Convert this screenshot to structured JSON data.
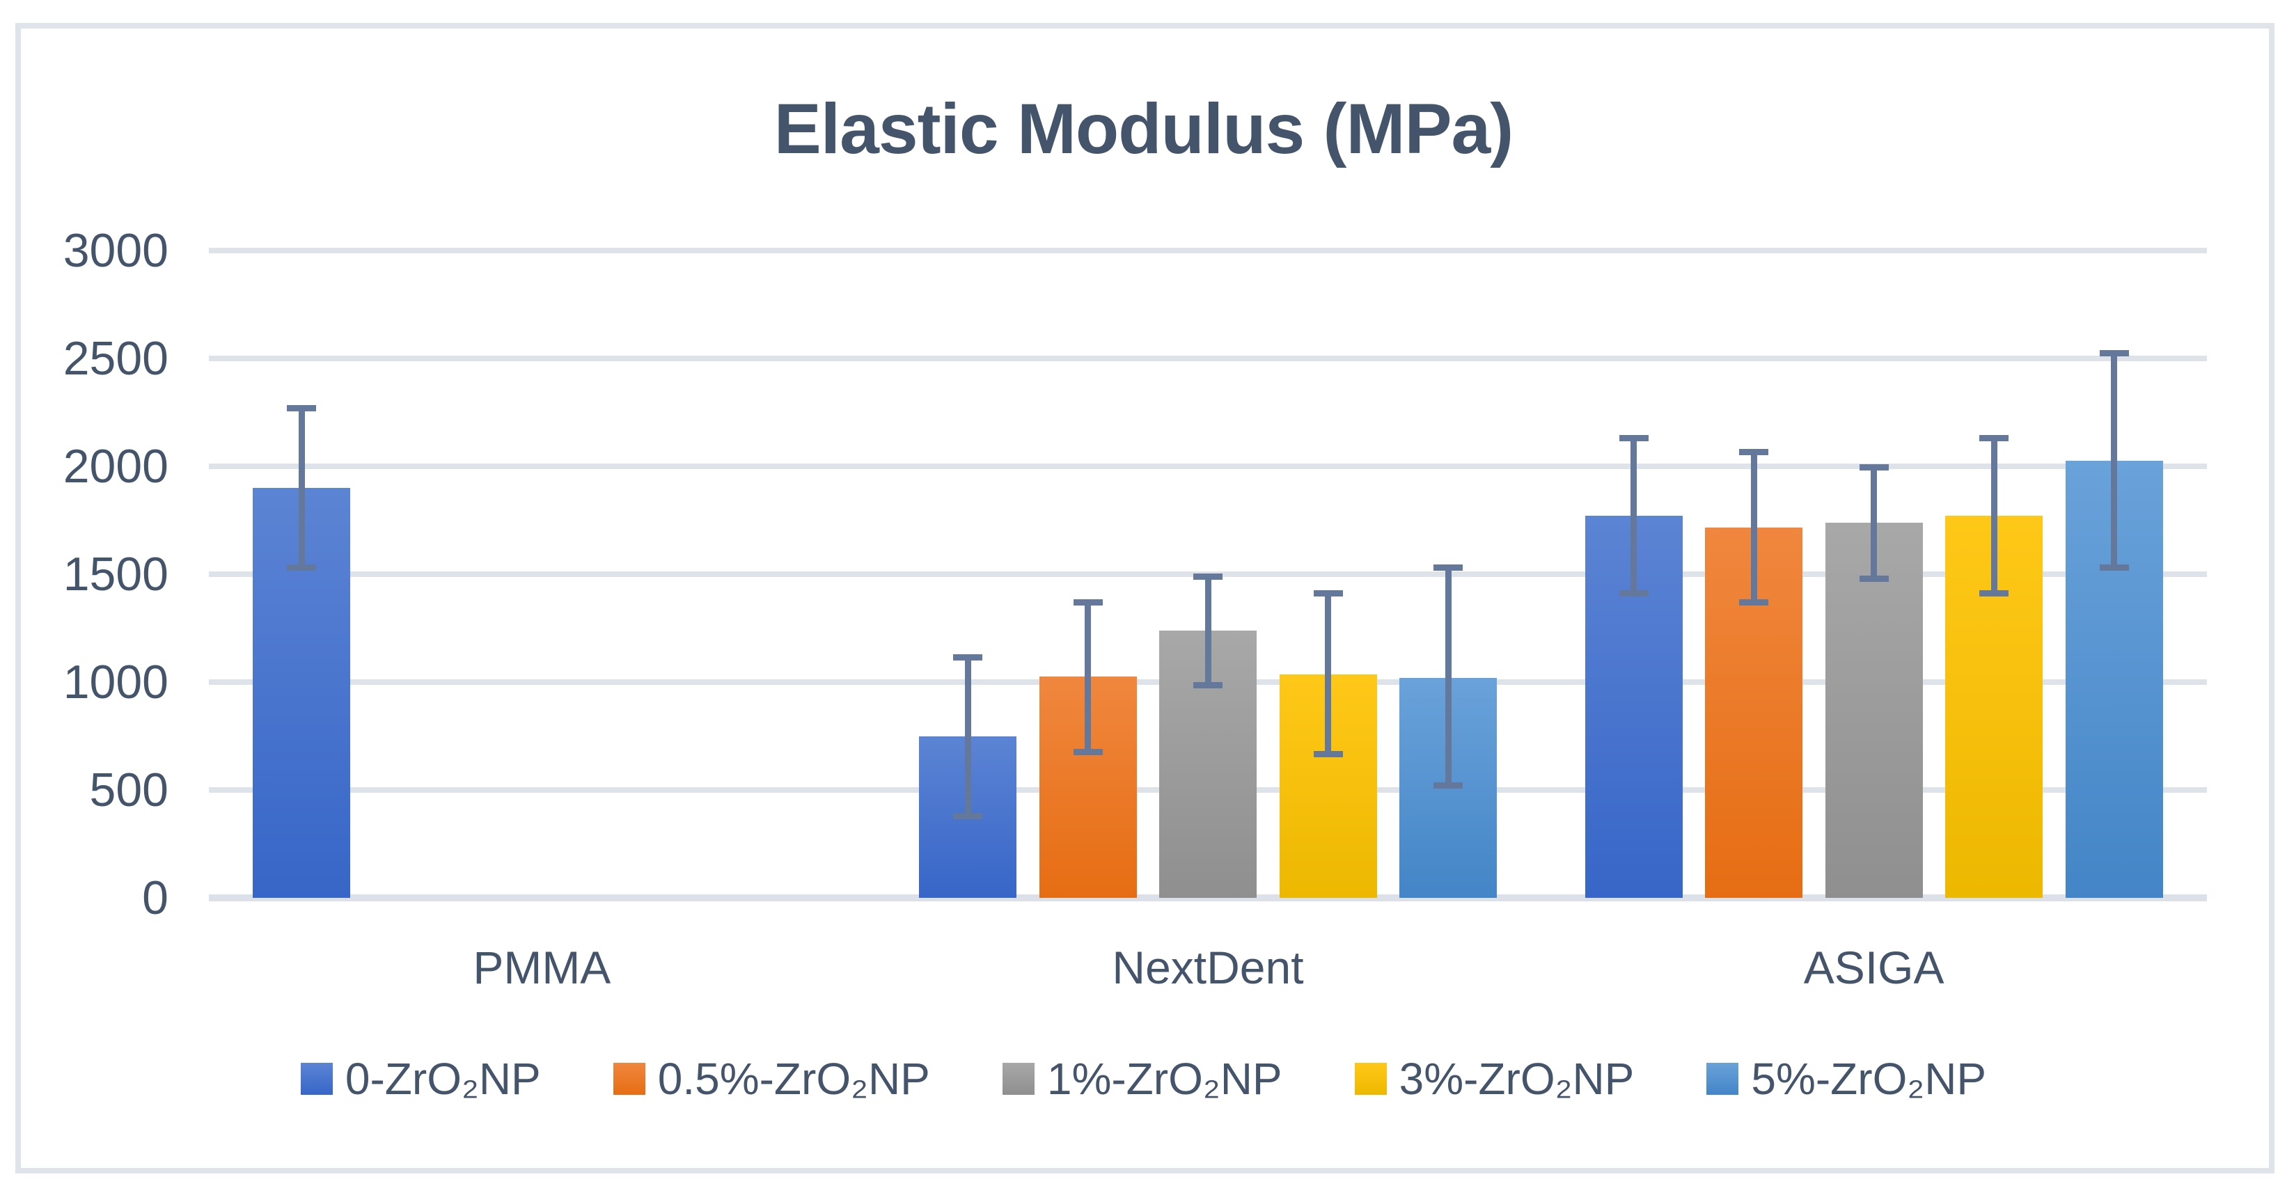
{
  "chart_data": {
    "type": "bar",
    "title": "Elastic Modulus (MPa)",
    "categories": [
      "PMMA",
      "NextDent",
      "ASIGA"
    ],
    "y_ticks": [
      0,
      500,
      1000,
      1500,
      2000,
      2500,
      3000
    ],
    "ylim": [
      0,
      3000
    ],
    "xlabel": "",
    "ylabel": "",
    "grid": "horizontal",
    "legend_position": "bottom",
    "error_bars": true,
    "series": [
      {
        "name": "0-ZrO₂NP",
        "color": "#4472C4",
        "gradient": [
          "#5C84D4",
          "#3766C8"
        ],
        "values": [
          1900,
          750,
          1770
        ],
        "error_low": [
          1530,
          380,
          1410
        ],
        "error_high": [
          2270,
          1115,
          2130
        ]
      },
      {
        "name": "0.5%-ZrO₂NP",
        "color": "#ED7D31",
        "gradient": [
          "#F0873E",
          "#E66D13"
        ],
        "values": [
          null,
          1025,
          1715
        ],
        "error_low": [
          null,
          675,
          1370
        ],
        "error_high": [
          null,
          1370,
          2065
        ]
      },
      {
        "name": "1%-ZrO₂NP",
        "color": "#A5A5A5",
        "gradient": [
          "#A8A8A8",
          "#8F8F8F"
        ],
        "values": [
          null,
          1240,
          1740
        ],
        "error_low": [
          null,
          985,
          1480
        ],
        "error_high": [
          null,
          1490,
          1995
        ]
      },
      {
        "name": "3%-ZrO₂NP",
        "color": "#FFC000",
        "gradient": [
          "#FFC818",
          "#EDB800"
        ],
        "values": [
          null,
          1035,
          1770
        ],
        "error_low": [
          null,
          665,
          1410
        ],
        "error_high": [
          null,
          1410,
          2130
        ]
      },
      {
        "name": "5%-ZrO₂NP",
        "color": "#5B9BD5",
        "gradient": [
          "#6AA2DA",
          "#4385C7"
        ],
        "values": [
          null,
          1020,
          2025
        ],
        "error_low": [
          null,
          520,
          1530
        ],
        "error_high": [
          null,
          1530,
          2525
        ]
      }
    ],
    "colors": {
      "text": "#44546A",
      "grid": "#DEE3EA",
      "axis": "#DCE1E9",
      "frame_border": "#DFE3EA",
      "error_bar": "#64789B",
      "background": "#FFFFFF"
    }
  }
}
